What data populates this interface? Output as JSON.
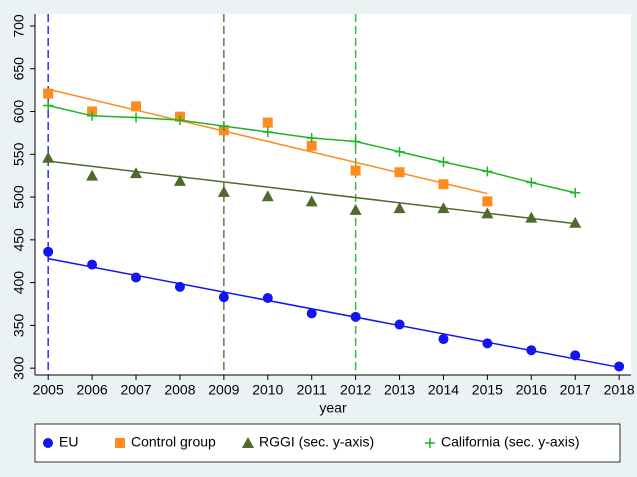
{
  "chart_data": {
    "type": "scatter",
    "x_label": "year",
    "xlim": [
      2004.7,
      2018.27
    ],
    "xticks": [
      2005,
      2006,
      2007,
      2008,
      2009,
      2010,
      2011,
      2012,
      2013,
      2014,
      2015,
      2016,
      2017,
      2018
    ],
    "ylim": [
      292,
      714
    ],
    "yticks": [
      300,
      350,
      400,
      450,
      500,
      550,
      600,
      650,
      700
    ],
    "grid": false,
    "legend": "bottom",
    "vlines": [
      {
        "x": 2005,
        "color": "#2b2bf0"
      },
      {
        "x": 2009,
        "color": "#5b7b3f"
      },
      {
        "x": 2012,
        "color": "#2fbf3a"
      }
    ],
    "series": [
      {
        "name": "EU",
        "color": "#1414f0",
        "marker": "circle",
        "line": false,
        "x": [
          2005,
          2006,
          2007,
          2008,
          2009,
          2010,
          2011,
          2012,
          2013,
          2014,
          2015,
          2016,
          2017,
          2018
        ],
        "values": [
          436,
          421,
          406,
          395,
          383,
          382,
          364,
          360,
          351,
          334,
          329,
          321,
          315,
          302
        ],
        "trend": {
          "x": [
            2005,
            2018
          ],
          "y": [
            428,
            301
          ]
        }
      },
      {
        "name": "Control group",
        "color": "#ff8a1e",
        "marker": "square",
        "line": false,
        "x": [
          2005,
          2006,
          2007,
          2008,
          2009,
          2010,
          2011,
          2012,
          2013,
          2014,
          2015
        ],
        "values": [
          621,
          600,
          606,
          594,
          578,
          587,
          560,
          531,
          529,
          515,
          495
        ],
        "trend": {
          "x": [
            2005,
            2015
          ],
          "y": [
            626,
            504
          ]
        }
      },
      {
        "name": "RGGI (sec. y-axis)",
        "color": "#4f6a2c",
        "marker": "triangle",
        "line": false,
        "x": [
          2005,
          2006,
          2007,
          2008,
          2009,
          2010,
          2011,
          2012,
          2013,
          2014,
          2015,
          2016,
          2017
        ],
        "values": [
          546,
          525,
          528,
          519,
          506,
          501,
          495,
          485,
          487,
          487,
          481,
          476,
          470
        ],
        "trend": {
          "x": [
            2005,
            2017
          ],
          "y": [
            542,
            469
          ]
        }
      },
      {
        "name": "California (sec. y-axis)",
        "color": "#1fb32a",
        "marker": "plus",
        "line": true,
        "x": [
          2005,
          2006,
          2007,
          2008,
          2009,
          2010,
          2011,
          2012,
          2013,
          2014,
          2015,
          2016,
          2017
        ],
        "values": [
          607,
          595,
          593,
          590,
          583,
          576,
          569,
          565,
          553,
          541,
          530,
          517,
          505
        ]
      }
    ]
  }
}
